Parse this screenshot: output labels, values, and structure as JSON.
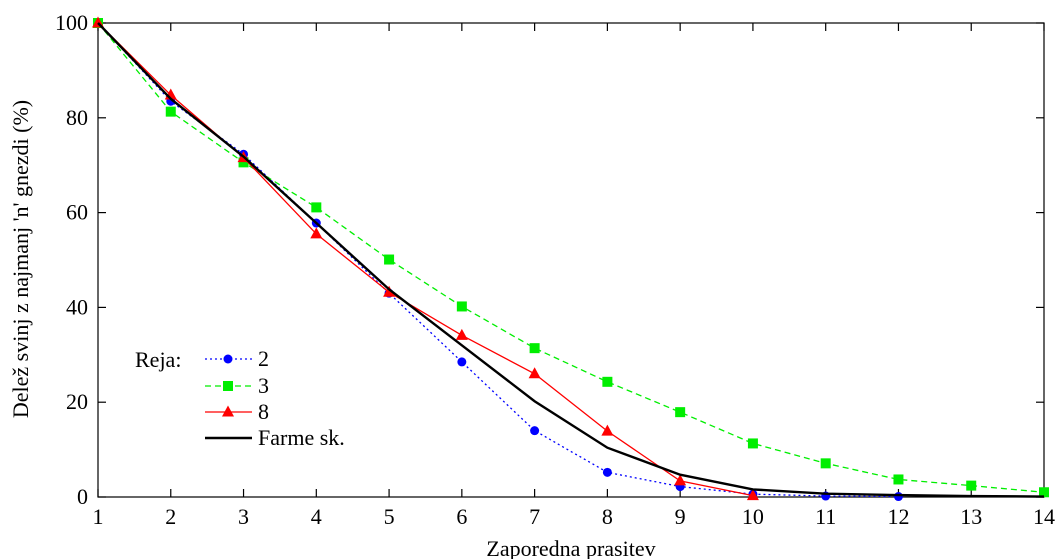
{
  "chart_data": {
    "type": "line",
    "xlabel": "Zaporedna prasitev",
    "ylabel": "Delež svinj z najmanj 'n' gnezdi (%)",
    "xlim": [
      1,
      14
    ],
    "ylim": [
      0,
      100
    ],
    "x_ticks": [
      "1",
      "2",
      "3",
      "4",
      "5",
      "6",
      "7",
      "8",
      "9",
      "10",
      "11",
      "12",
      "13",
      "14"
    ],
    "y_ticks": [
      "0",
      "20",
      "40",
      "60",
      "80",
      "100"
    ],
    "grid": false,
    "legend_title": "Reja:",
    "legend_position": "bottom-left",
    "series": [
      {
        "name": "2",
        "color": "#0000ff",
        "dash": "dotted",
        "marker": "circle",
        "x": [
          1,
          2,
          3,
          4,
          5,
          6,
          7,
          8,
          9,
          10,
          11,
          12
        ],
        "values": [
          100,
          83.5,
          72.3,
          57.8,
          43,
          28.5,
          14,
          5.2,
          2.2,
          0.6,
          0.2,
          0.1
        ]
      },
      {
        "name": "3",
        "color": "#00ee00",
        "dash": "dashed",
        "marker": "square",
        "x": [
          1,
          2,
          3,
          4,
          5,
          6,
          7,
          8,
          9,
          10,
          11,
          12,
          13,
          14
        ],
        "values": [
          100,
          81.3,
          70.6,
          61.1,
          50.1,
          40.2,
          31.4,
          24.3,
          17.9,
          11.3,
          7.1,
          3.7,
          2.4,
          1
        ]
      },
      {
        "name": "8",
        "color": "#ff0000",
        "dash": "solid",
        "marker": "triangle",
        "x": [
          1,
          2,
          3,
          4,
          5,
          6,
          7,
          8,
          9,
          10
        ],
        "values": [
          100,
          84.8,
          71.6,
          55.5,
          43.2,
          34.1,
          26,
          13.9,
          3.4,
          0.3
        ]
      },
      {
        "name": "Farme sk.",
        "color": "#000000",
        "dash": "solid",
        "marker": "none",
        "x": [
          1,
          2,
          3,
          4,
          5,
          6,
          7,
          8,
          9,
          10,
          11,
          12,
          13,
          14
        ],
        "values": [
          100,
          84,
          71.8,
          57.8,
          43.8,
          32,
          20.2,
          10.4,
          4.7,
          1.6,
          0.7,
          0.4,
          0.2,
          0.1
        ]
      }
    ]
  }
}
